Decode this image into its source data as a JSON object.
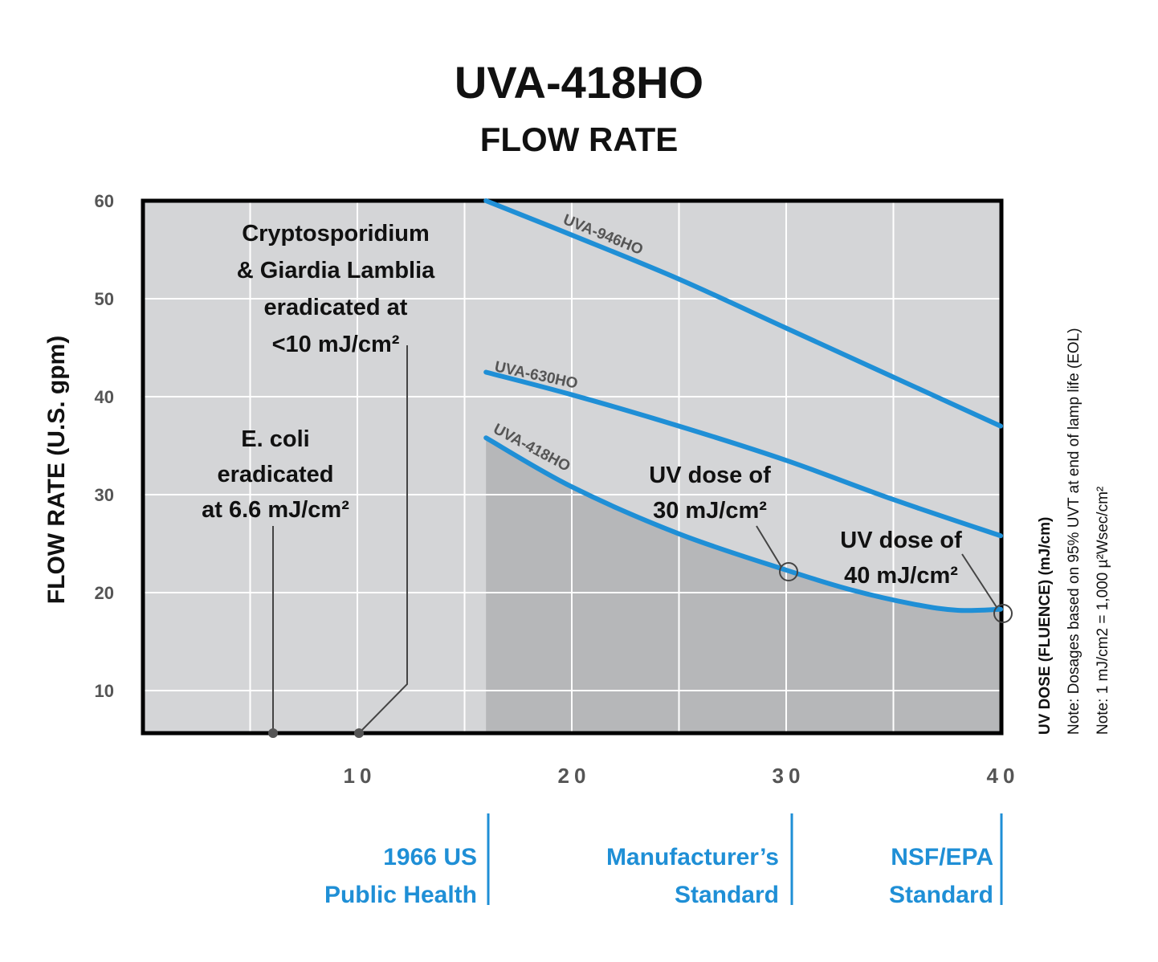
{
  "title": "UVA-418HO",
  "subtitle": "FLOW RATE",
  "chart_data": {
    "type": "line",
    "ylabel": "FLOW RATE (U.S. gpm)",
    "xlabel": "UV DOSE (FLUENCE) (mJ/cm)",
    "xlim": [
      0,
      40
    ],
    "ylim": [
      5.5,
      60
    ],
    "x_ticks": [
      "10",
      "20",
      "30",
      "40"
    ],
    "y_ticks": [
      "60",
      "50",
      "40",
      "30",
      "20",
      "10"
    ],
    "grid": true,
    "series": [
      {
        "name": "UVA-946HO",
        "color": "#1f8fd6",
        "points": [
          [
            16,
            60
          ],
          [
            20,
            56.5
          ],
          [
            25,
            52
          ],
          [
            30,
            47
          ],
          [
            35,
            42
          ],
          [
            40,
            37
          ]
        ]
      },
      {
        "name": "UVA-630HO",
        "color": "#1f8fd6",
        "points": [
          [
            16,
            42.5
          ],
          [
            20,
            40.2
          ],
          [
            25,
            37
          ],
          [
            30,
            33.5
          ],
          [
            35,
            29.5
          ],
          [
            40,
            25.8
          ]
        ]
      },
      {
        "name": "UVA-418HO",
        "color": "#1f8fd6",
        "filled": true,
        "points": [
          [
            16,
            35.8
          ],
          [
            20,
            30.8
          ],
          [
            25,
            26
          ],
          [
            30,
            22.3
          ],
          [
            33,
            20.3
          ],
          [
            36,
            18.8
          ],
          [
            38,
            18.2
          ],
          [
            40,
            18.3
          ]
        ]
      }
    ],
    "annotations": [
      {
        "id": "crypto",
        "lines": [
          "Cryptosporidium",
          "& Giardia Lamblia",
          "eradicated at",
          "<10 mJ/cm²"
        ],
        "x": 10
      },
      {
        "id": "ecoli",
        "lines": [
          "E. coli",
          "eradicated",
          "at 6.6 mJ/cm²"
        ],
        "x": 6.1
      },
      {
        "id": "dose30",
        "lines": [
          "UV dose of",
          "30 mJ/cm²"
        ],
        "x": 30,
        "y": 22.3
      },
      {
        "id": "dose40",
        "lines": [
          "UV dose of",
          "40 mJ/cm²"
        ],
        "x": 40,
        "y": 18.3
      }
    ],
    "standards": [
      {
        "lines": [
          "1966 US",
          "Public Health"
        ],
        "x": 16
      },
      {
        "lines": [
          "Manufacturer’s",
          "Standard"
        ],
        "x": 30
      },
      {
        "lines": [
          "NSF/EPA",
          "Standard"
        ],
        "x": 40
      }
    ],
    "notes": [
      "Note: Dosages based on 95% UVT at end of lamp life (EOL)",
      "Note: 1 mJ/cm2 = 1,000 µ²Wsec/cm²"
    ]
  },
  "colors": {
    "line": "#1f8fd6",
    "plot_bg": "#d4d5d7",
    "fill": "#b6b7b9",
    "grid": "#ffffff"
  }
}
